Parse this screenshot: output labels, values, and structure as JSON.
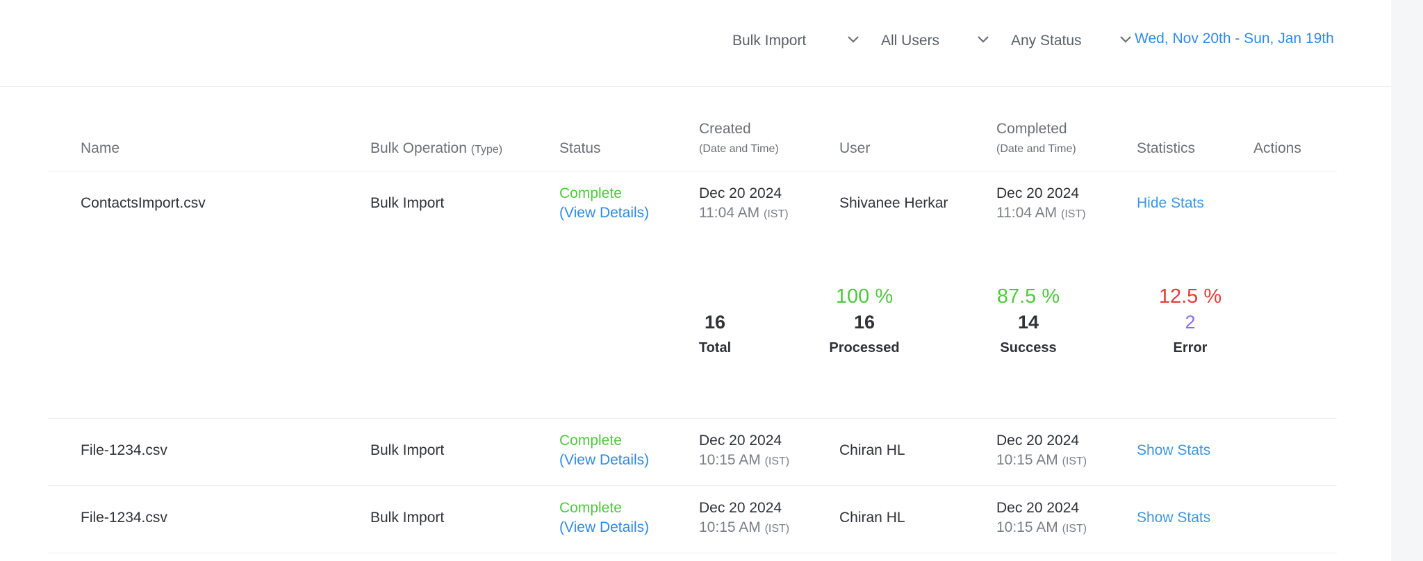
{
  "filters": {
    "operation": "Bulk Import",
    "users": "All Users",
    "status": "Any Status",
    "date_range": "Wed, Nov 20th - Sun, Jan 19th"
  },
  "columns": {
    "name": "Name",
    "operation": "Bulk Operation",
    "operation_sub": "(Type)",
    "status": "Status",
    "created": "Created",
    "created_sub": "(Date and Time)",
    "user": "User",
    "completed": "Completed",
    "completed_sub": "(Date and Time)",
    "statistics": "Statistics",
    "actions": "Actions"
  },
  "rows": [
    {
      "name": "ContactsImport.csv",
      "operation": "Bulk Import",
      "status": "Complete",
      "view_details": "(View Details)",
      "created_date": "Dec 20 2024",
      "created_time": "11:04 AM",
      "created_tz": "(IST)",
      "user": "Shivanee Herkar",
      "completed_date": "Dec 20 2024",
      "completed_time": "11:04 AM",
      "completed_tz": "(IST)",
      "stats_toggle": "Hide Stats"
    },
    {
      "name": "File-1234.csv",
      "operation": "Bulk Import",
      "status": "Complete",
      "view_details": "(View Details)",
      "created_date": "Dec 20 2024",
      "created_time": "10:15 AM",
      "created_tz": "(IST)",
      "user": "Chiran HL",
      "completed_date": "Dec 20 2024",
      "completed_time": "10:15 AM",
      "completed_tz": "(IST)",
      "stats_toggle": "Show Stats"
    },
    {
      "name": "File-1234.csv",
      "operation": "Bulk Import",
      "status": "Complete",
      "view_details": "(View Details)",
      "created_date": "Dec 20 2024",
      "created_time": "10:15 AM",
      "created_tz": "(IST)",
      "user": "Chiran HL",
      "completed_date": "Dec 20 2024",
      "completed_time": "10:15 AM",
      "completed_tz": "(IST)",
      "stats_toggle": "Show Stats"
    }
  ],
  "stats": {
    "total": {
      "value": "16",
      "label": "Total"
    },
    "processed": {
      "pct": "100 %",
      "value": "16",
      "label": "Processed"
    },
    "success": {
      "pct": "87.5 %",
      "value": "14",
      "label": "Success"
    },
    "error": {
      "pct": "12.5 %",
      "value": "2",
      "label": "Error"
    }
  },
  "colors": {
    "link": "#2e8ae6",
    "success": "#4fc83d",
    "error_pct": "#e53b3b",
    "error_count": "#8a6cf0"
  },
  "icons": {
    "dropdown": "chevron-down-icon"
  }
}
